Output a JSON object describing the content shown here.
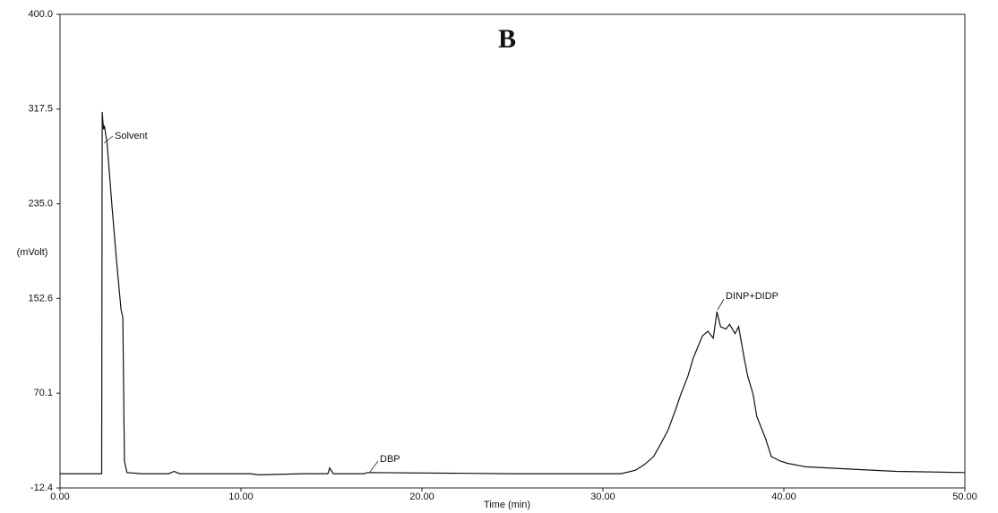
{
  "chart_data": {
    "type": "line",
    "title": "B",
    "xlabel": "Time (min)",
    "ylabel": "(mVolt)",
    "annotations": [
      "Solvent",
      "DBP",
      "DINP+DIDP"
    ],
    "color": "#111111",
    "xlim": [
      0,
      50
    ],
    "ylim": [
      -12.4,
      400
    ],
    "xticks": [
      {
        "value": 0,
        "label": "0.00"
      },
      {
        "value": 10,
        "label": "10.00"
      },
      {
        "value": 20,
        "label": "20.00"
      },
      {
        "value": 30,
        "label": "30.00"
      },
      {
        "value": 40,
        "label": "40.00"
      },
      {
        "value": 50,
        "label": "50.00"
      }
    ],
    "yticks": [
      -12.4,
      70.1,
      152.6,
      {
        "value": 235,
        "label": "235.0"
      },
      317.5,
      {
        "value": 400,
        "label": "400.0"
      }
    ],
    "x": [
      0,
      2.3,
      2.33,
      2.4,
      2.45,
      2.6,
      2.87,
      3.12,
      3.37,
      3.47,
      3.56,
      3.7,
      4.5,
      6,
      6.3,
      6.6,
      10.5,
      11,
      13.5,
      14.8,
      14.9,
      15.1,
      16.8,
      17,
      25,
      31,
      31.8,
      32.3,
      32.8,
      33.2,
      33.6,
      34,
      34.3,
      34.7,
      35,
      35.5,
      35.8,
      36.1,
      36.3,
      36.5,
      36.8,
      37,
      37.3,
      37.5,
      37.8,
      38,
      38.3,
      38.5,
      38.8,
      39,
      39.3,
      39.8,
      40.2,
      41.2,
      43.7,
      46.2,
      50
    ],
    "values": [
      0,
      0,
      315,
      300,
      303,
      288,
      233,
      186,
      143,
      136,
      11,
      1,
      0,
      0,
      2,
      0,
      0,
      -1,
      0,
      0,
      5,
      0,
      0,
      1,
      0,
      0,
      3,
      8,
      15,
      26,
      38,
      55,
      69,
      85,
      101,
      120,
      124,
      118,
      141,
      128,
      126,
      130,
      122,
      128,
      101,
      85,
      69,
      50,
      38,
      30,
      15,
      11,
      9,
      6,
      4,
      2,
      1
    ]
  }
}
